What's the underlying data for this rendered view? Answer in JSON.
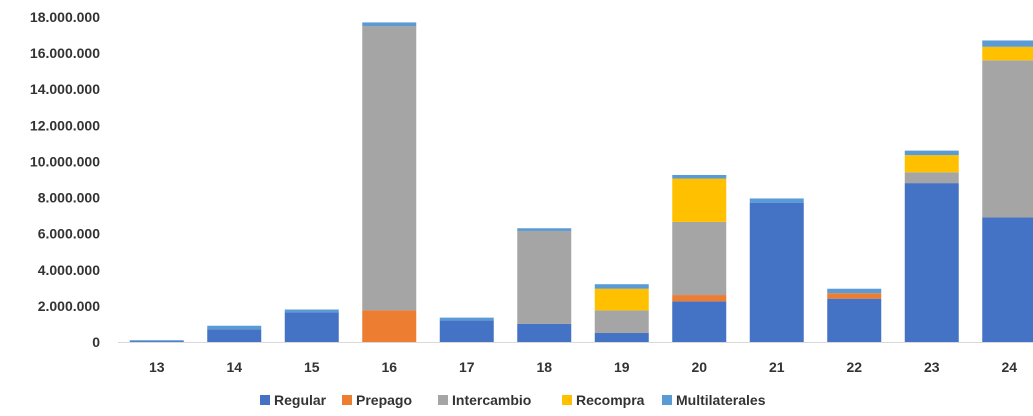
{
  "chart_data": {
    "type": "bar",
    "stacked": true,
    "categories": [
      "13",
      "14",
      "15",
      "16",
      "17",
      "18",
      "19",
      "20",
      "21",
      "22",
      "23",
      "24"
    ],
    "series": [
      {
        "name": "Regular",
        "color": "#4472C4",
        "values": [
          50000,
          700000,
          1650000,
          0,
          1200000,
          1000000,
          500000,
          2250000,
          7700000,
          2400000,
          8800000,
          6900000
        ]
      },
      {
        "name": "Prepago",
        "color": "#ED7D31",
        "values": [
          0,
          0,
          0,
          1750000,
          0,
          0,
          0,
          350000,
          0,
          300000,
          0,
          0
        ]
      },
      {
        "name": "Intercambio",
        "color": "#A5A5A5",
        "values": [
          0,
          0,
          0,
          15750000,
          0,
          5150000,
          1250000,
          4050000,
          0,
          0,
          600000,
          8700000
        ]
      },
      {
        "name": "Recompra",
        "color": "#FFC000",
        "values": [
          0,
          0,
          0,
          0,
          0,
          0,
          1200000,
          2400000,
          0,
          0,
          950000,
          750000
        ]
      },
      {
        "name": "Multilaterales",
        "color": "#5B9BD5",
        "values": [
          50000,
          200000,
          150000,
          200000,
          150000,
          150000,
          250000,
          200000,
          250000,
          250000,
          250000,
          350000
        ]
      }
    ],
    "ylim": [
      0,
      18000000
    ],
    "yticks": [
      0,
      2000000,
      4000000,
      6000000,
      8000000,
      10000000,
      12000000,
      14000000,
      16000000,
      18000000
    ],
    "ytick_labels": [
      "0",
      "2.000.000",
      "4.000.000",
      "6.000.000",
      "8.000.000",
      "10.000.000",
      "12.000.000",
      "14.000.000",
      "16.000.000",
      "18.000.000"
    ],
    "grid": false,
    "legend_position": "bottom"
  }
}
